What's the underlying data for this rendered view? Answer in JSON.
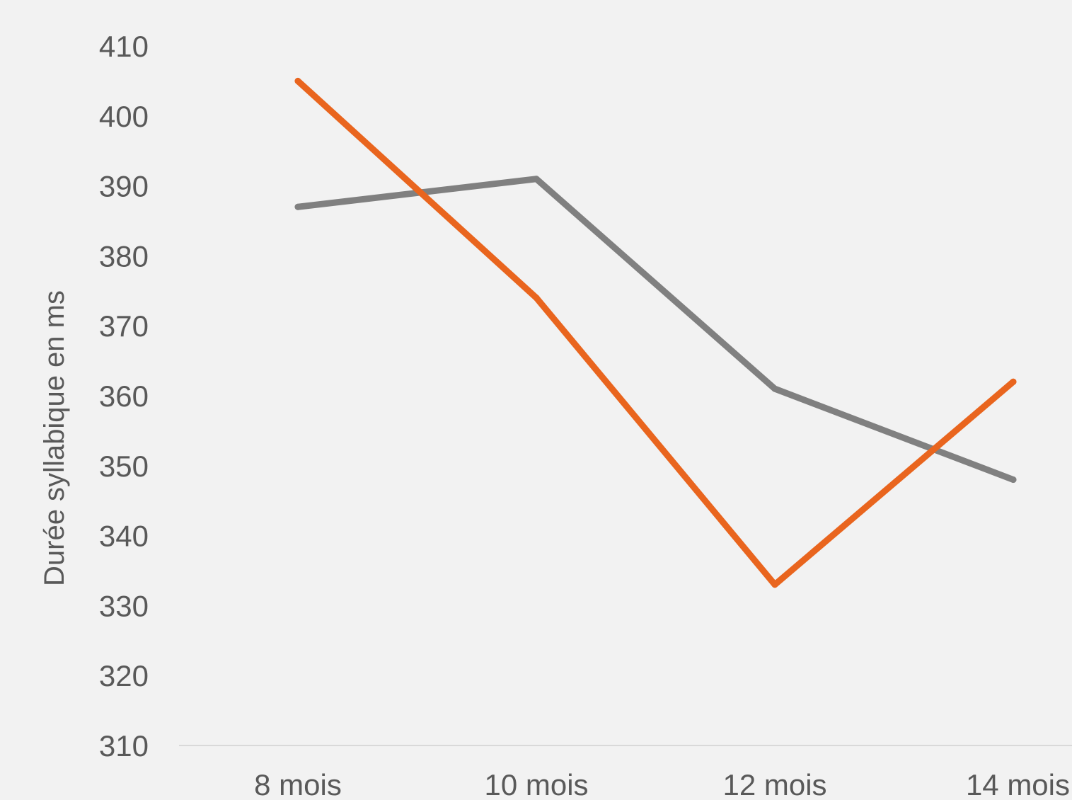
{
  "chart_data": {
    "type": "line",
    "ylabel": "Durée syllabique en ms",
    "ylim": [
      310,
      410
    ],
    "yticks": [
      "410",
      "400",
      "390",
      "380",
      "370",
      "360",
      "350",
      "340",
      "330",
      "320",
      "310"
    ],
    "categories": [
      "8 mois",
      "10 mois",
      "12 mois",
      "14 mois"
    ],
    "series": [
      {
        "color": "#808080",
        "values": [
          387,
          391,
          361,
          348
        ]
      },
      {
        "color": "#e9651e",
        "values": [
          405,
          374,
          333,
          362
        ]
      }
    ],
    "grid": false,
    "legend": "none"
  }
}
